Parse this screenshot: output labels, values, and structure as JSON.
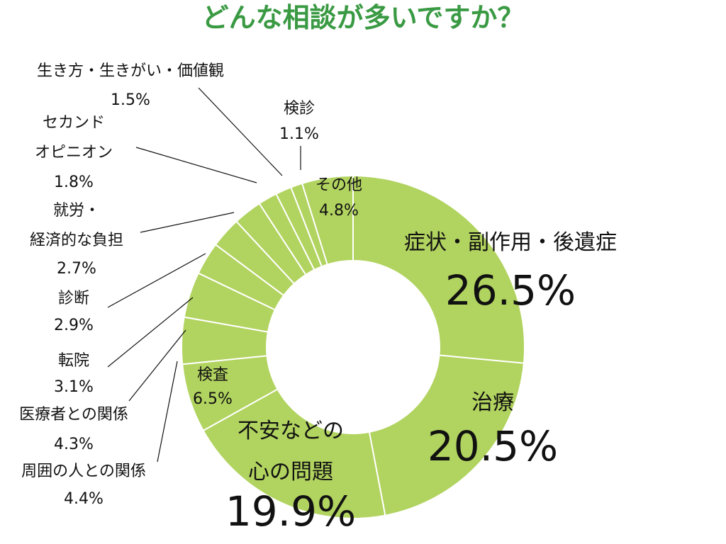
{
  "chart_data": {
    "type": "pie",
    "title": "どんな相談が多いですか？",
    "slice_color": "#b1d35f",
    "slice_edge_color": "#ffffff",
    "title_color": "#3a9a43",
    "slices": [
      {
        "label": "症状・副作用・後遺症",
        "value": 26.5,
        "value_text": "26.5%"
      },
      {
        "label": "治療",
        "value": 20.5,
        "value_text": "20.5%"
      },
      {
        "label": "不安などの心の問題",
        "label_lines": [
          "不安などの",
          "心の問題"
        ],
        "value": 19.9,
        "value_text": "19.9%"
      },
      {
        "label": "検査",
        "value": 6.5,
        "value_text": "6.5%"
      },
      {
        "label": "周囲の人との関係",
        "value": 4.4,
        "value_text": "4.4%"
      },
      {
        "label": "医療者との関係",
        "value": 4.3,
        "value_text": "4.3%"
      },
      {
        "label": "転院",
        "value": 3.1,
        "value_text": "3.1%"
      },
      {
        "label": "診断",
        "value": 2.9,
        "value_text": "2.9%"
      },
      {
        "label": "就労・経済的な負担",
        "label_lines": [
          "就労・",
          "経済的な負担"
        ],
        "value": 2.7,
        "value_text": "2.7%"
      },
      {
        "label": "セカンドオピニオン",
        "label_lines": [
          "セカンド",
          "オピニオン"
        ],
        "value": 1.8,
        "value_text": "1.8%"
      },
      {
        "label": "生き方・生きがい・価値観",
        "value": 1.5,
        "value_text": "1.5%"
      },
      {
        "label": "検診",
        "value": 1.1,
        "value_text": "1.1%"
      },
      {
        "label": "その他",
        "value": 4.8,
        "value_text": "4.8%"
      }
    ]
  }
}
